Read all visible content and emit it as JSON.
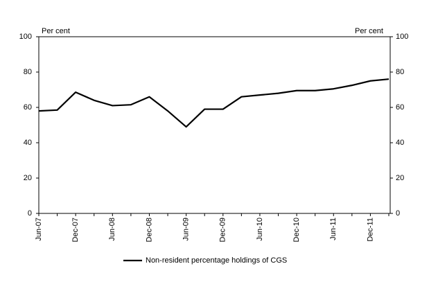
{
  "chart_data": {
    "type": "line",
    "y_label": "Per cent",
    "y2_label": "Per cent",
    "categories": [
      "Jun-07",
      null,
      "Dec-07",
      null,
      "Jun-08",
      null,
      "Dec-08",
      null,
      "Jun-09",
      null,
      "Dec-09",
      null,
      "Jun-10",
      null,
      "Dec-10",
      null,
      "Jun-11",
      null,
      "Dec-11",
      null
    ],
    "series": [
      {
        "name": "Non-resident percentage holdings of CGS",
        "color": "#000000",
        "values": [
          58,
          58.5,
          68.6,
          64,
          61,
          61.5,
          66,
          58,
          49,
          59,
          59,
          66,
          67,
          68,
          69.5,
          69.5,
          70.5,
          72.5,
          75,
          76
        ]
      }
    ],
    "ylim": [
      0,
      100
    ],
    "yticks": [
      0,
      20,
      40,
      60,
      80,
      100
    ],
    "y2lim": [
      0,
      100
    ],
    "y2ticks": [
      0,
      20,
      40,
      60,
      80,
      100
    ],
    "legend": "bottom"
  }
}
